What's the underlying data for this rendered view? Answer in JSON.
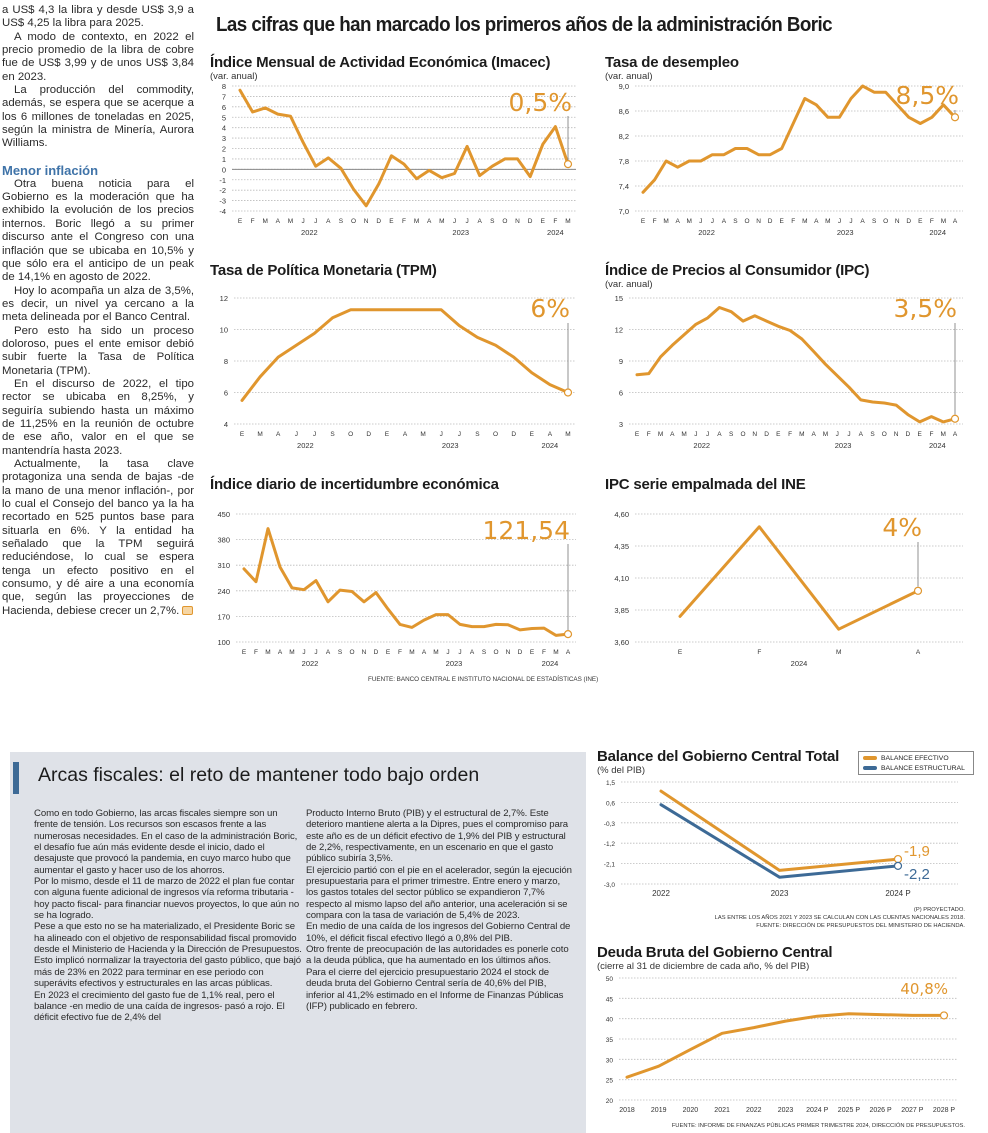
{
  "left_column": {
    "paragraphs_before": [
      "a US$ 4,3 la libra y desde US$ 3,9 a US$ 4,25 la libra para 2025.",
      "A modo de contexto, en 2022 el precio promedio de la libra de cobre fue de US$ 3,99 y de unos US$ 3,84 en 2023.",
      "La producción del commodity, además, se espera que se acerque a los 6 millones de toneladas en 2025, según la ministra de Minería, Aurora Williams."
    ],
    "subheading": "Menor inflación",
    "paragraphs_after": [
      "Otra buena noticia para el Gobierno es la moderación que ha exhibido la evolución de los precios internos. Boric llegó a su primer discurso ante el Congreso con una inflación que se ubicaba en 10,5% y que sólo era el anticipo de un peak de 14,1% en agosto de 2022.",
      "Hoy lo acompaña un alza de 3,5%, es decir, un nivel ya cercano a la meta delineada por el Banco Central.",
      "Pero esto ha sido un proceso doloroso, pues el ente emisor debió subir fuerte la Tasa de Política Monetaria (TPM).",
      "En el discurso de 2022, el tipo rector se ubicaba en 8,25%, y seguiría subiendo hasta un máximo de 11,25% en la reunión de octubre de ese año, valor en el que se mantendría hasta 2023.",
      "Actualmente, la tasa clave protagoniza una senda de bajas -de la mano de una menor inflación-, por lo cual el Consejo del banco ya la ha recortado en 525 puntos base para situarla en 6%. Y la entidad ha señalado que la TPM seguirá reduciéndose, lo cual se espera tenga un efecto positivo en el consumo, y dé aire a una economía que, según las proyecciones de Hacienda, debiese crecer un 2,7%."
    ]
  },
  "main_title": "Las cifras que han marcado los primeros años de la administración Boric",
  "colors": {
    "orange": "#e0962e",
    "blue": "#3d6a96",
    "grid": "#bbbbbb",
    "box_bg": "#dfe2e8"
  },
  "source_top": "Fuente: Banco Central e Instituto Nacional de Estadísticas (INE)",
  "fiscal_box": {
    "title": "Arcas fiscales: el reto de mantener todo bajo orden",
    "col1": [
      "Como en todo Gobierno, las arcas fiscales siempre son un frente de tensión. Los recursos son escasos frente a las numerosas necesidades. En el caso de la administración Boric, el desafío fue aún más evidente desde el inicio, dado el desajuste que provocó la pandemia, en cuyo marco hubo que aumentar el gasto y hacer uso de los ahorros.",
      "Por lo mismo, desde el 11 de marzo de 2022 el plan fue contar con alguna fuente adicional de ingresos vía reforma tributaria -hoy pacto fiscal- para financiar nuevos proyectos, lo que aún no se ha logrado.",
      "Pese a que esto no se ha materializado, el Presidente Boric se ha alineado con el objetivo de responsabilidad fiscal promovido desde el Ministerio de Hacienda y la Dirección de Presupuestos. Esto implicó normalizar la trayectoria del gasto público, que bajó más de 23% en 2022 para terminar en ese periodo con superávits efectivos y estructurales en las arcas públicas.",
      "En 2023 el crecimiento del gasto fue de 1,1% real, pero el balance -en medio de una caída de ingresos- pasó a rojo. El déficit efectivo fue de 2,4% del"
    ],
    "col2": [
      "Producto Interno Bruto (PIB) y el estructural de 2,7%. Este deterioro mantiene alerta a la Dipres, pues el compromiso para este año es de un déficit efectivo de 1,9% del PIB y estructural de 2,2%, respectivamente, en un escenario en que el gasto público subiría 3,5%.",
      "El ejercicio partió con el pie en el acelerador, según la ejecución presupuestaria para el primer trimestre. Entre enero y marzo, los gastos totales del sector público se expandieron 7,7% respecto al mismo lapso del año anterior, una aceleración si se compara con la tasa de variación de 5,4% de 2023.",
      "En medio de una caída de los ingresos del Gobierno Central de 10%, el déficit fiscal efectivo llegó a 0,8% del PIB.",
      "Otro frente de preocupación de las autoridades es ponerle coto a la deuda pública, que ha aumentado en los últimos años.",
      "Para el cierre del ejercicio presupuestario 2024 el stock de deuda bruta del Gobierno Central sería de 40,6% del PIB, inferior al 41,2% estimado en el Informe de Finanzas Públicas (IFP) publicado en febrero."
    ]
  },
  "chart_data": [
    {
      "id": "imacec",
      "type": "line",
      "title": "Índice Mensual de Actividad Económica (Imacec)",
      "subtitle": "(var. anual)",
      "categories": [
        "E",
        "F",
        "M",
        "A",
        "M",
        "J",
        "J",
        "A",
        "S",
        "O",
        "N",
        "D",
        "E",
        "F",
        "M",
        "A",
        "M",
        "J",
        "J",
        "A",
        "S",
        "O",
        "N",
        "D",
        "E",
        "F",
        "M"
      ],
      "x_groups": [
        {
          "label": "2022",
          "count": 12
        },
        {
          "label": "2023",
          "count": 12
        },
        {
          "label": "2024",
          "count": 3
        }
      ],
      "ylim": [
        -4,
        8
      ],
      "yticks": [
        8,
        7,
        6,
        5,
        4,
        3,
        2,
        1,
        0,
        -1,
        -2,
        -3,
        -4
      ],
      "zero_line": true,
      "grid": true,
      "series": [
        {
          "values": [
            7.6,
            5.5,
            5.9,
            5.3,
            5.1,
            2.6,
            0.3,
            1.1,
            0.1,
            -1.9,
            -3.5,
            -1.4,
            1.3,
            0.5,
            -0.9,
            -0.1,
            -0.8,
            -0.4,
            2.2,
            -0.6,
            0.3,
            1.0,
            1.0,
            -0.7,
            2.4,
            4.1,
            0.5
          ]
        }
      ],
      "callout": "0,5%"
    },
    {
      "id": "desempleo",
      "type": "line",
      "title": "Tasa de desempleo",
      "subtitle": "(var. anual)",
      "categories": [
        "E",
        "F",
        "M",
        "A",
        "M",
        "J",
        "J",
        "A",
        "S",
        "O",
        "N",
        "D",
        "E",
        "F",
        "M",
        "A",
        "M",
        "J",
        "J",
        "A",
        "S",
        "O",
        "N",
        "D",
        "E",
        "F",
        "M",
        "A"
      ],
      "x_groups": [
        {
          "label": "2022",
          "count": 12
        },
        {
          "label": "2023",
          "count": 12
        },
        {
          "label": "2024",
          "count": 4
        }
      ],
      "ylim": [
        7.0,
        9.0
      ],
      "yticks": [
        9.0,
        8.6,
        8.2,
        7.8,
        7.4,
        7.0
      ],
      "grid": true,
      "series": [
        {
          "values": [
            7.3,
            7.5,
            7.8,
            7.7,
            7.8,
            7.8,
            7.9,
            7.9,
            8.0,
            8.0,
            7.9,
            7.9,
            8.0,
            8.4,
            8.8,
            8.7,
            8.5,
            8.5,
            8.8,
            9.0,
            8.9,
            8.9,
            8.7,
            8.5,
            8.4,
            8.5,
            8.7,
            8.5
          ]
        }
      ],
      "callout": "8,5%"
    },
    {
      "id": "tpm",
      "type": "line",
      "title": "Tasa de Política Monetaria (TPM)",
      "subtitle": "",
      "categories": [
        "E",
        "M",
        "A",
        "J",
        "J",
        "S",
        "O",
        "D",
        "E",
        "A",
        "M",
        "J",
        "J",
        "S",
        "O",
        "D",
        "E",
        "A",
        "M"
      ],
      "x_groups": [
        {
          "label": "2022",
          "count": 8
        },
        {
          "label": "2023",
          "count": 8
        },
        {
          "label": "2024",
          "count": 3
        }
      ],
      "ylim": [
        4,
        12
      ],
      "yticks": [
        12,
        10,
        8,
        6,
        4
      ],
      "grid": true,
      "series": [
        {
          "values": [
            5.5,
            7.0,
            8.25,
            9.0,
            9.75,
            10.75,
            11.25,
            11.25,
            11.25,
            11.25,
            11.25,
            11.25,
            10.25,
            9.5,
            9.0,
            8.25,
            7.25,
            6.5,
            6.0
          ]
        }
      ],
      "callout": "6%"
    },
    {
      "id": "ipc",
      "type": "line",
      "title": "Índice de Precios al Consumidor (IPC)",
      "subtitle": "(var. anual)",
      "categories": [
        "E",
        "F",
        "M",
        "A",
        "M",
        "J",
        "J",
        "A",
        "S",
        "O",
        "N",
        "D",
        "E",
        "F",
        "M",
        "A",
        "M",
        "J",
        "J",
        "A",
        "S",
        "O",
        "N",
        "D",
        "E",
        "F",
        "M",
        "A"
      ],
      "x_groups": [
        {
          "label": "2022",
          "count": 12
        },
        {
          "label": "2023",
          "count": 12
        },
        {
          "label": "2024",
          "count": 4
        }
      ],
      "ylim": [
        3,
        15
      ],
      "yticks": [
        15,
        12,
        9,
        6,
        3
      ],
      "grid": true,
      "series": [
        {
          "values": [
            7.7,
            7.8,
            9.4,
            10.5,
            11.5,
            12.5,
            13.1,
            14.1,
            13.7,
            12.8,
            13.3,
            12.8,
            12.3,
            11.9,
            11.1,
            9.9,
            8.7,
            7.6,
            6.5,
            5.3,
            5.1,
            5.0,
            4.8,
            3.9,
            3.2,
            3.7,
            3.2,
            3.5
          ]
        }
      ],
      "callout": "3,5%"
    },
    {
      "id": "incertidumbre",
      "type": "line",
      "title": "Índice diario de incertidumbre económica",
      "subtitle": "",
      "categories": [
        "E",
        "F",
        "M",
        "A",
        "M",
        "J",
        "J",
        "A",
        "S",
        "O",
        "N",
        "D",
        "E",
        "F",
        "M",
        "A",
        "M",
        "J",
        "J",
        "A",
        "S",
        "O",
        "N",
        "D",
        "E",
        "F",
        "M",
        "A"
      ],
      "x_groups": [
        {
          "label": "2022",
          "count": 12
        },
        {
          "label": "2023",
          "count": 12
        },
        {
          "label": "2024",
          "count": 4
        }
      ],
      "ylim": [
        100,
        450
      ],
      "yticks": [
        450,
        380,
        310,
        240,
        170,
        100
      ],
      "grid": true,
      "series": [
        {
          "values": [
            300,
            265,
            410,
            305,
            248,
            243,
            268,
            210,
            242,
            238,
            210,
            235,
            190,
            148,
            140,
            160,
            175,
            175,
            148,
            142,
            142,
            148,
            147,
            133,
            137,
            138,
            118,
            121.54
          ]
        }
      ],
      "callout": "121,54"
    },
    {
      "id": "ipc_empalmada",
      "type": "line",
      "title": "IPC serie empalmada del INE",
      "subtitle": "",
      "categories": [
        "E",
        "F",
        "M",
        "A"
      ],
      "x_groups": [
        {
          "label": "2024",
          "count": 4
        }
      ],
      "ylim": [
        3.6,
        4.6
      ],
      "yticks": [
        "4,60",
        "4,35",
        "4,10",
        "3,85",
        "3,60"
      ],
      "yticks_values": [
        4.6,
        4.35,
        4.1,
        3.85,
        3.6
      ],
      "grid": true,
      "series": [
        {
          "values": [
            3.8,
            4.5,
            3.7,
            4.0
          ]
        }
      ],
      "callout": "4%"
    },
    {
      "id": "balance",
      "type": "line",
      "title": "Balance del Gobierno Central Total",
      "subtitle": "(% del PIB)",
      "categories": [
        "2022",
        "2023",
        "2024 P"
      ],
      "ylim": [
        -3.0,
        1.5
      ],
      "yticks": [
        "1,5",
        "0,6",
        "-0,3",
        "-1,2",
        "-2,1",
        "-3,0"
      ],
      "yticks_values": [
        1.5,
        0.6,
        -0.3,
        -1.2,
        -2.1,
        -3.0
      ],
      "grid": true,
      "legend": "top-right",
      "series": [
        {
          "name": "BALANCE EFECTIVO",
          "color": "orange",
          "values": [
            1.1,
            -2.4,
            -1.9
          ],
          "end_label": "-1,9"
        },
        {
          "name": "BALANCE ESTRUCTURAL",
          "color": "blue",
          "values": [
            0.5,
            -2.7,
            -2.2
          ],
          "end_label": "-2,2"
        }
      ],
      "notes": [
        "(P) Proyectado.",
        "Las entre los años 2021 y 2023 se calculan  con las cuentas nacionales 2018.",
        "Fuente: Dirección de Presupuestos del Ministerio de Hacienda."
      ]
    },
    {
      "id": "deuda",
      "type": "line",
      "title": "Deuda Bruta del Gobierno Central",
      "subtitle": "(cierre al 31 de diciembre de cada año, % del PIB)",
      "categories": [
        "2018",
        "2019",
        "2020",
        "2021",
        "2022",
        "2023",
        "2024 P",
        "2025 P",
        "2026 P",
        "2027 P",
        "2028 P"
      ],
      "ylim": [
        20,
        50
      ],
      "yticks": [
        50,
        45,
        40,
        35,
        30,
        25,
        20
      ],
      "grid": true,
      "series": [
        {
          "values": [
            25.6,
            28.3,
            32.4,
            36.4,
            37.8,
            39.4,
            40.6,
            41.2,
            41.0,
            40.8,
            40.8
          ]
        }
      ],
      "callout": "40,8%",
      "notes": [
        "Fuente: Informe de Finanzas Públicas primer trimestre 2024, Dirección de Presupuestos."
      ]
    }
  ]
}
